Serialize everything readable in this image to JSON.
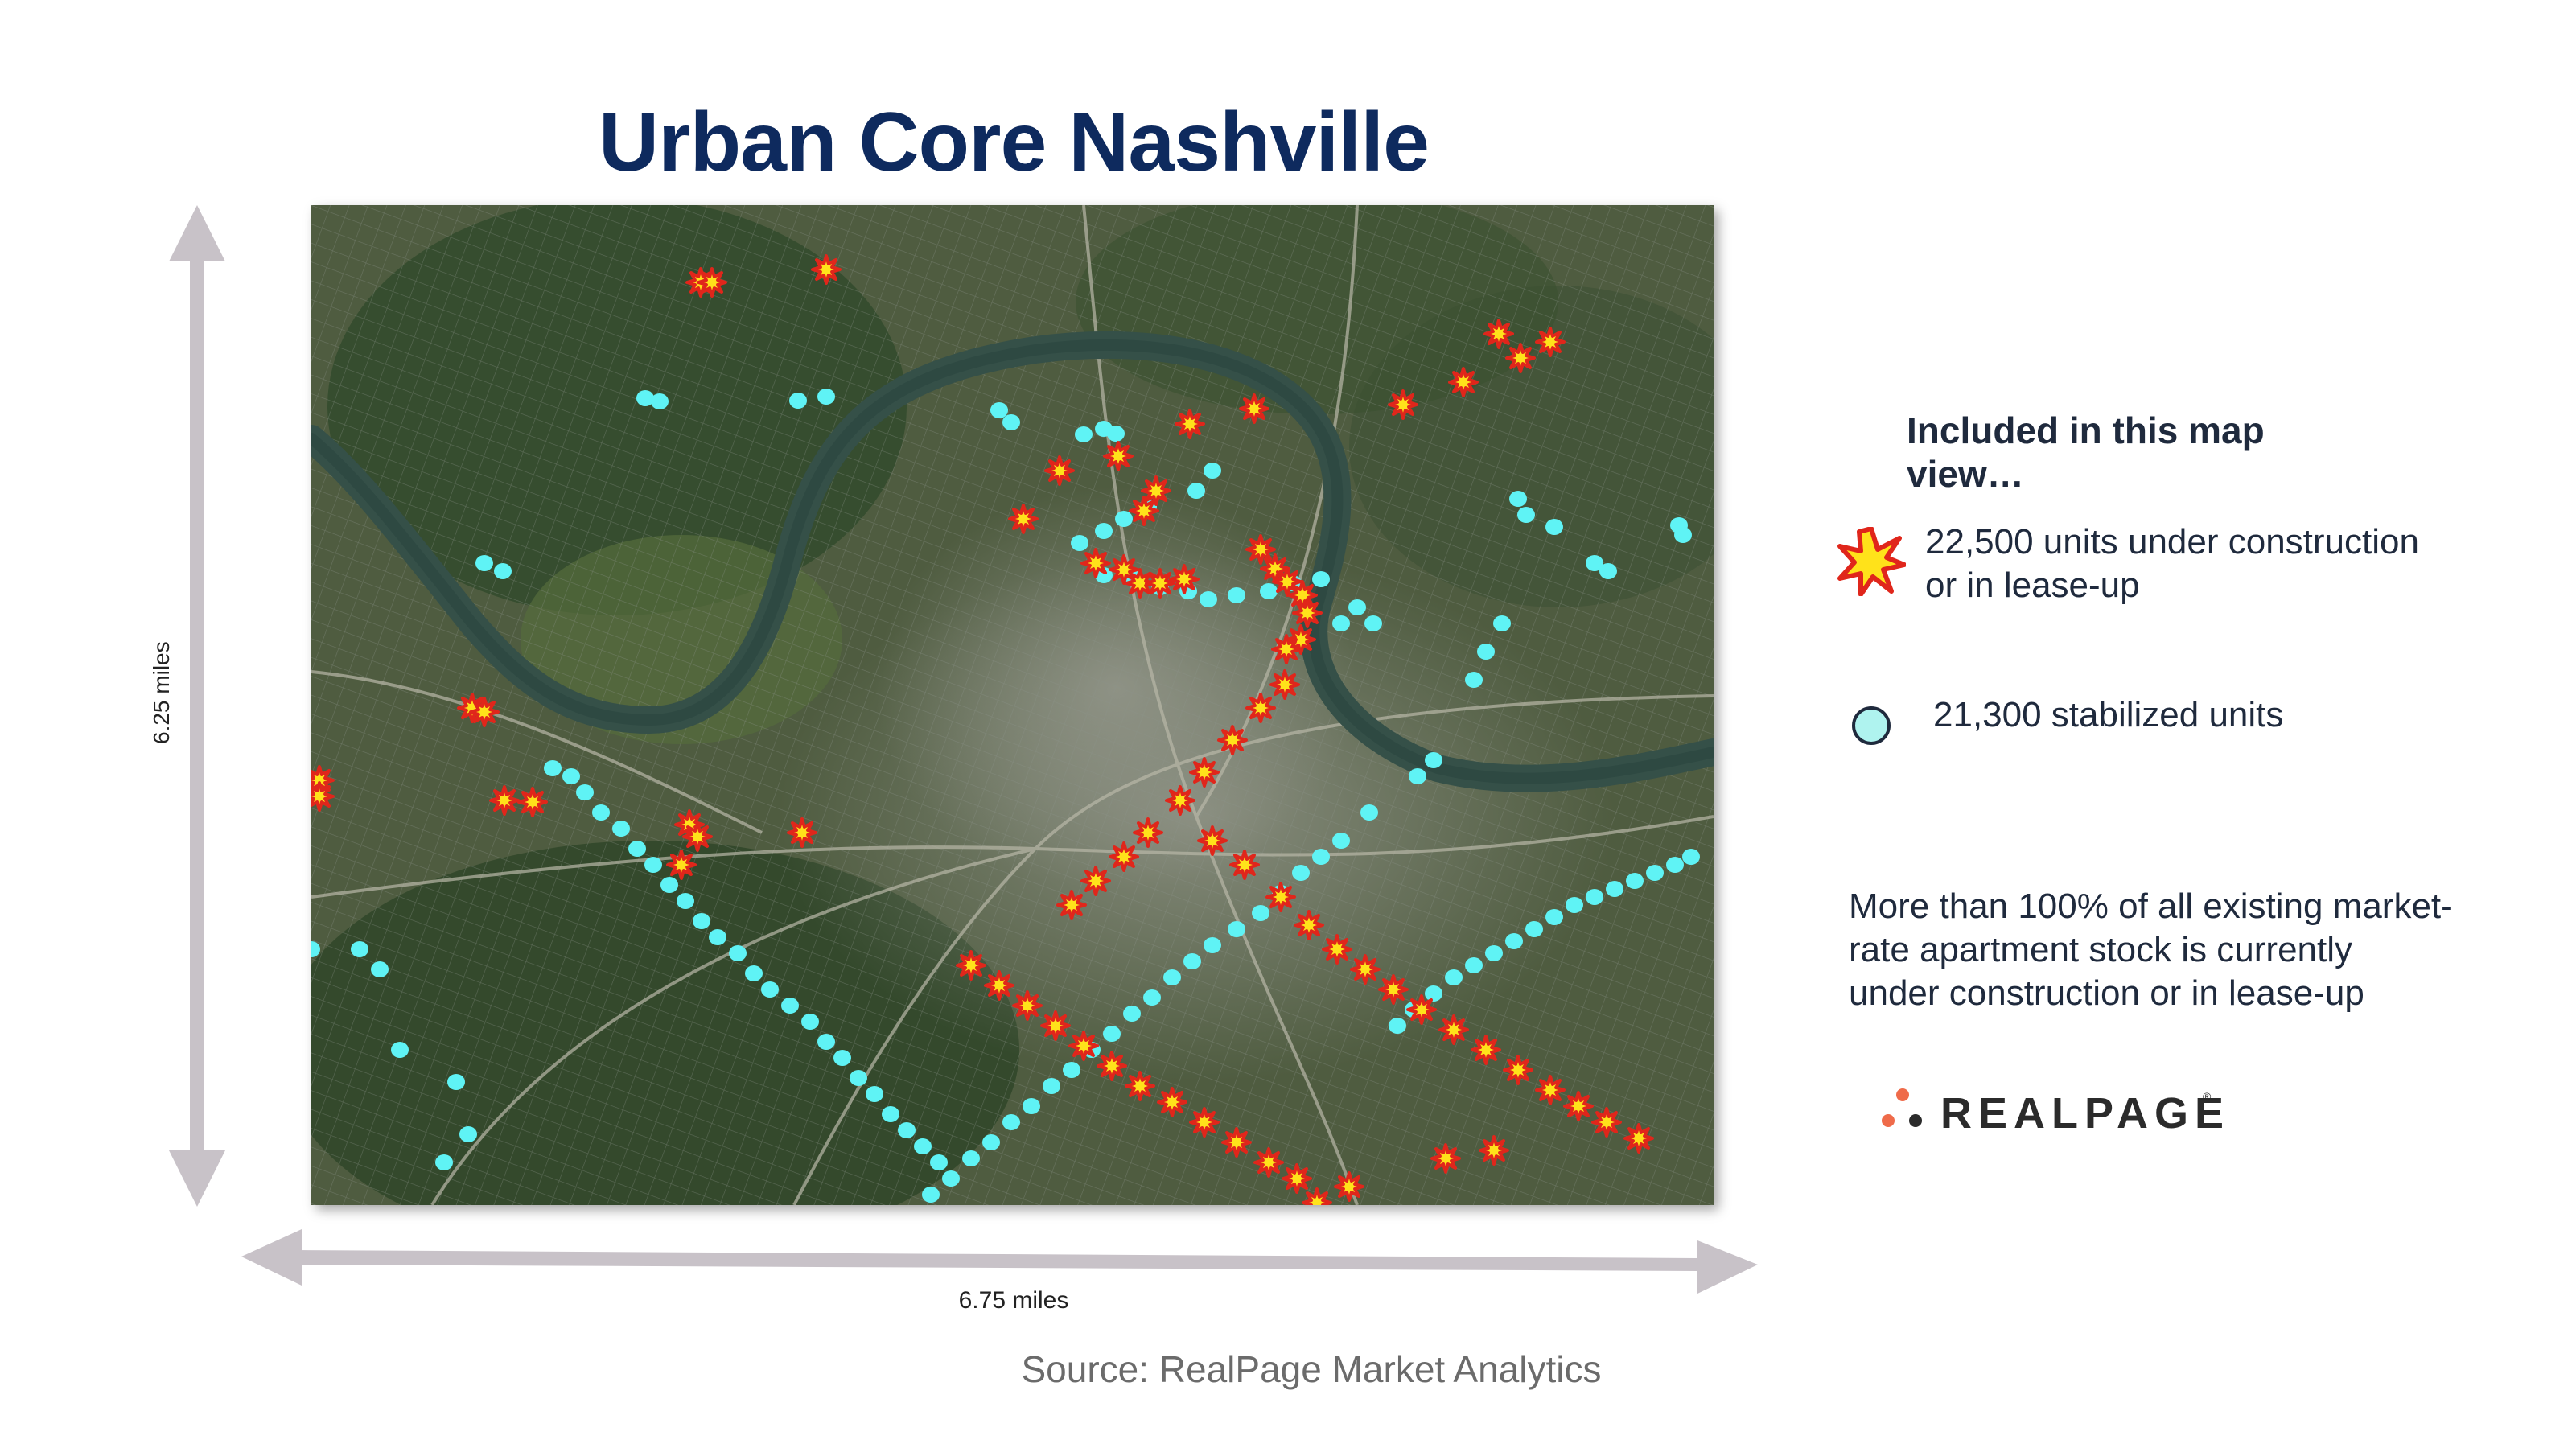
{
  "title": "Urban Core Nashville",
  "map": {
    "vertical_scale_label": "6.25 miles",
    "horizontal_scale_label": "6.75 miles",
    "marker_colors": {
      "construction_fill": "#ffe21a",
      "construction_stroke": "#e0261b",
      "stabilized": "#5ff3f5"
    }
  },
  "legend": {
    "heading": "Included in this map view…",
    "construction_label_line1": "22,500 units under construction",
    "construction_label_line2": "or in lease-up",
    "stabilized_label": "21,300 stabilized units"
  },
  "note": {
    "line1": "More than 100% of all existing market-",
    "line2": "rate apartment stock is currently",
    "line3": "under construction or in lease-up"
  },
  "source": "Source: RealPage Market Analytics",
  "logo": {
    "text": "REALPAGE",
    "trademark": "®"
  },
  "colors": {
    "title": "#0e2a5e",
    "arrows": "#c8c2c8",
    "logo_dots": "#ef6b4a"
  }
}
